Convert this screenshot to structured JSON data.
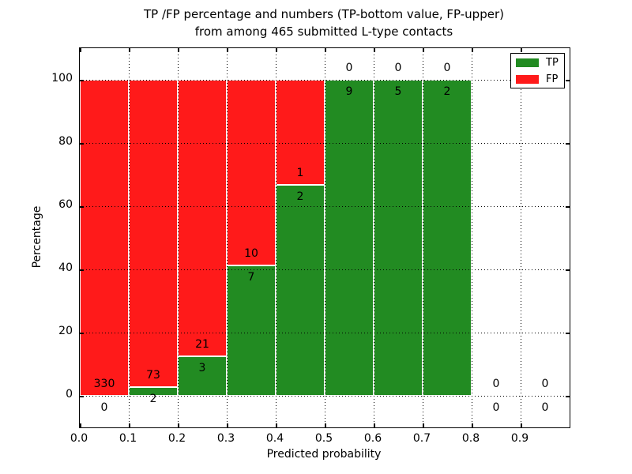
{
  "chart_data": {
    "type": "bar",
    "stacked": true,
    "title_line1": "TP /FP percentage and numbers (TP-bottom value, FP-upper)",
    "title_line2": "from among 465 submitted L-type contacts",
    "xlabel": "Predicted probability",
    "ylabel": "Percentage",
    "xlim": [
      0.0,
      1.0
    ],
    "ylim": [
      -10,
      110
    ],
    "x_tick_labels": [
      "0.0",
      "0.1",
      "0.2",
      "0.3",
      "0.4",
      "0.5",
      "0.6",
      "0.7",
      "0.8",
      "0.9"
    ],
    "y_tick_values": [
      0,
      20,
      40,
      60,
      80,
      100
    ],
    "grid": "dotted",
    "legend_position": "upper-right",
    "legend": [
      {
        "label": "TP",
        "key": "tp"
      },
      {
        "label": "FP",
        "key": "fp"
      }
    ],
    "colors": {
      "tp": "#228b22",
      "fp": "#ff1a1a"
    },
    "bins": [
      {
        "x_range": [
          0.0,
          0.1
        ],
        "tp": 0,
        "fp": 330,
        "tp_pct": 0
      },
      {
        "x_range": [
          0.1,
          0.2
        ],
        "tp": 2,
        "fp": 73,
        "tp_pct": 2.7
      },
      {
        "x_range": [
          0.2,
          0.3
        ],
        "tp": 3,
        "fp": 21,
        "tp_pct": 12.5
      },
      {
        "x_range": [
          0.3,
          0.4
        ],
        "tp": 7,
        "fp": 10,
        "tp_pct": 41.2
      },
      {
        "x_range": [
          0.4,
          0.5
        ],
        "tp": 2,
        "fp": 1,
        "tp_pct": 66.7
      },
      {
        "x_range": [
          0.5,
          0.6
        ],
        "tp": 9,
        "fp": 0,
        "tp_pct": 100
      },
      {
        "x_range": [
          0.6,
          0.7
        ],
        "tp": 5,
        "fp": 0,
        "tp_pct": 100
      },
      {
        "x_range": [
          0.7,
          0.8
        ],
        "tp": 2,
        "fp": 0,
        "tp_pct": 100
      },
      {
        "x_range": [
          0.8,
          0.9
        ],
        "tp": 0,
        "fp": 0,
        "tp_pct": null
      },
      {
        "x_range": [
          0.9,
          1.0
        ],
        "tp": 0,
        "fp": 0,
        "tp_pct": null
      }
    ]
  }
}
